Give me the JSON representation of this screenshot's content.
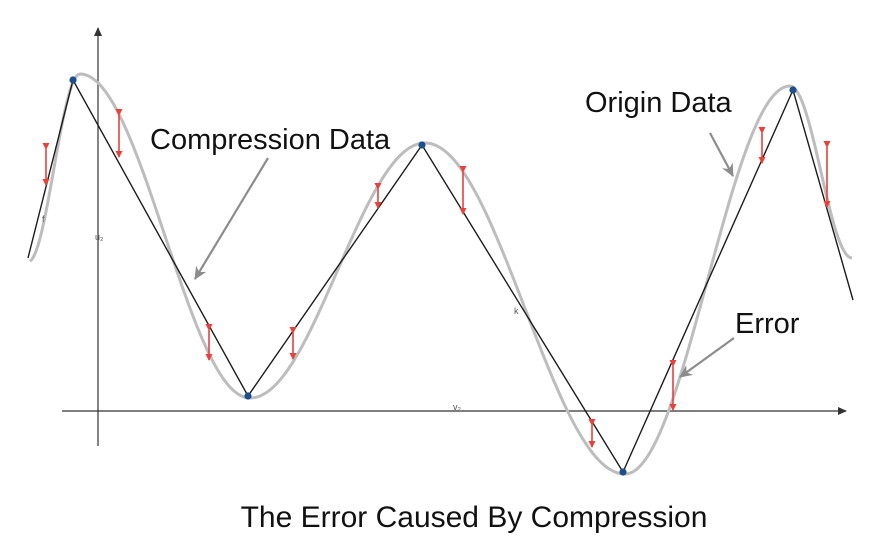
{
  "diagram": {
    "caption": "The Error Caused By Compression",
    "labels": {
      "compression": "Compression Data",
      "origin": "Origin Data",
      "error": "Error"
    },
    "axis_labels": {
      "y": "u₂",
      "x": "v₂",
      "curve": "f",
      "line": "k"
    },
    "colors": {
      "origin_curve": "#bdbdbd",
      "compression_line": "#1c1c1c",
      "sample_point": "#1f4e8c",
      "error_arrow": "#e8413c",
      "pointer_arrow": "#8c8c8c"
    }
  }
}
